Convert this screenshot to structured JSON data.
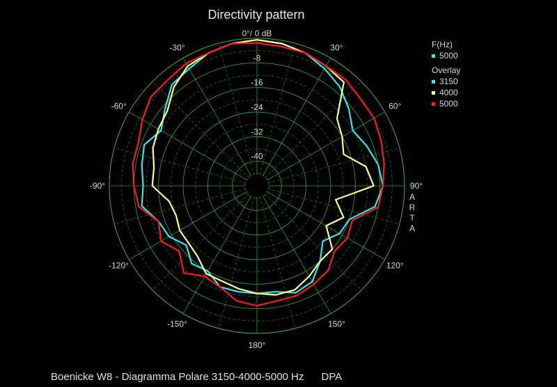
{
  "title": "Directivity pattern",
  "footer": {
    "caption": "Boenicke W8 - Diagramma Polare 3150-4000-5000 Hz",
    "mode": "DPA"
  },
  "side_label": [
    "A",
    "R",
    "T",
    "A"
  ],
  "legend": {
    "freq_header": "F(Hz)",
    "freq_value": "5000",
    "freq_color": "#33e6f0",
    "overlay_header": "Overlay",
    "overlay": [
      {
        "label": "3150",
        "color": "#33e6f0"
      },
      {
        "label": "4000",
        "color": "#ffff88"
      },
      {
        "label": "5000",
        "color": "#ff1a1a"
      }
    ]
  },
  "chart_data": {
    "type": "polar",
    "title": "Directivity pattern",
    "radial_unit": "dB",
    "radial_range": [
      -48,
      0
    ],
    "radial_ticks": [
      "0°/ 0 dB",
      "-8",
      "-16",
      "-24",
      "-32",
      "-40"
    ],
    "angle_ticks": [
      {
        "angle": 0,
        "label": ""
      },
      {
        "angle": 30,
        "label": "30°"
      },
      {
        "angle": 60,
        "label": "60°"
      },
      {
        "angle": 90,
        "label": "90°"
      },
      {
        "angle": 120,
        "label": "120°"
      },
      {
        "angle": 150,
        "label": "150°"
      },
      {
        "angle": 180,
        "label": "180°"
      },
      {
        "angle": -150,
        "label": "-150°"
      },
      {
        "angle": -120,
        "label": "-120°"
      },
      {
        "angle": -90,
        "label": "-90°"
      },
      {
        "angle": -60,
        "label": "-60°"
      },
      {
        "angle": -30,
        "label": "-30°"
      }
    ],
    "angles_deg": [
      0,
      10,
      20,
      30,
      40,
      50,
      60,
      70,
      80,
      90,
      100,
      110,
      120,
      130,
      140,
      150,
      160,
      170,
      180,
      190,
      200,
      210,
      220,
      230,
      240,
      250,
      260,
      270,
      280,
      290,
      300,
      310,
      320,
      330,
      340,
      350
    ],
    "series": [
      {
        "name": "3150",
        "color": "#33e6f0",
        "values": [
          -0.5,
          -1,
          -2,
          -4,
          -6,
          -9,
          -12,
          -10,
          -8,
          -7,
          -9,
          -16,
          -17,
          -20,
          -16,
          -12,
          -11,
          -13,
          -13,
          -13,
          -13,
          -16,
          -15,
          -18,
          -15,
          -14,
          -10,
          -11,
          -10,
          -9,
          -12,
          -9,
          -5,
          -4,
          -2,
          -1
        ]
      },
      {
        "name": "4000",
        "color": "#ffff88",
        "values": [
          -0.5,
          -1,
          -2,
          -3,
          -4,
          -14,
          -16,
          -18,
          -12,
          -10,
          -22,
          -18,
          -22,
          -16,
          -16,
          -14,
          -12,
          -12,
          -13,
          -14,
          -15,
          -15,
          -18,
          -19,
          -19,
          -20,
          -19,
          -14,
          -14,
          -12,
          -11,
          -10,
          -6,
          -3,
          -2,
          -1
        ]
      },
      {
        "name": "5000",
        "color": "#ff1a1a",
        "values": [
          -1.5,
          -2,
          -2,
          -3,
          -3,
          -4,
          -4,
          -5,
          -6,
          -7,
          -8,
          -15,
          -14,
          -15,
          -12,
          -11,
          -10,
          -10,
          -9,
          -10,
          -13,
          -14,
          -11,
          -15,
          -12,
          -14,
          -9,
          -8,
          -7,
          -7,
          -5,
          -3,
          -3,
          -2,
          -2,
          -1
        ]
      }
    ]
  }
}
